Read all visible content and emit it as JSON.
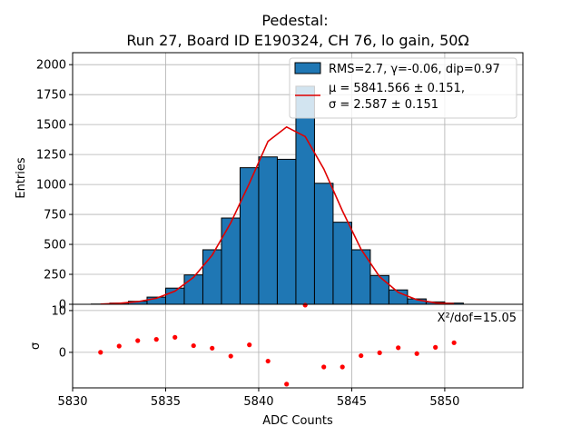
{
  "chart_data": [
    {
      "type": "bar",
      "title_lines": [
        "Pedestal:",
        "Run 27, Board ID E190324, CH 76, lo gain, 50Ω"
      ],
      "ylabel": "Entries",
      "xlim": [
        5830,
        5854.2
      ],
      "ylim": [
        0,
        2100
      ],
      "yticks": [
        0,
        250,
        500,
        750,
        1000,
        1250,
        1500,
        1750,
        2000
      ],
      "grid": true,
      "legend_position": "top-right",
      "histogram": {
        "name": "RMS=2.7, γ=-0.06, dip=0.97",
        "color": "#1f77b4",
        "bin_width": 1,
        "bin_starts": [
          5831,
          5832,
          5833,
          5834,
          5835,
          5836,
          5837,
          5838,
          5839,
          5840,
          5841,
          5842,
          5843,
          5844,
          5845,
          5846,
          5847,
          5848,
          5849,
          5850
        ],
        "counts": [
          2,
          10,
          25,
          60,
          135,
          245,
          455,
          720,
          1140,
          1230,
          1210,
          1820,
          1010,
          685,
          455,
          240,
          120,
          45,
          20,
          10
        ]
      },
      "fit": {
        "name_line1": "μ = 5841.566 ± 0.151,",
        "name_line2": "σ = 2.587 ± 0.151",
        "color": "#e00000",
        "x": [
          5831.5,
          5832.5,
          5833.5,
          5834.5,
          5835.5,
          5836.5,
          5837.5,
          5838.5,
          5839.5,
          5840.5,
          5841.5,
          5842.5,
          5843.5,
          5844.5,
          5845.5,
          5846.5,
          5847.5,
          5848.5,
          5849.5,
          5850.5
        ],
        "y": [
          2,
          8,
          22,
          50,
          110,
          225,
          410,
          680,
          1010,
          1360,
          1480,
          1400,
          1130,
          780,
          460,
          230,
          100,
          38,
          12,
          4
        ]
      }
    },
    {
      "type": "scatter",
      "xlabel": "ADC Counts",
      "ylabel": "σ",
      "xlim": [
        5830,
        5854.2
      ],
      "ylim": [
        -8.5,
        11.5
      ],
      "xticks": [
        5830,
        5835,
        5840,
        5845,
        5850
      ],
      "yticks": [
        0,
        10
      ],
      "grid": true,
      "annotation": "X²/dof=15.05",
      "color": "#ff0000",
      "x": [
        5831.5,
        5832.5,
        5833.5,
        5834.5,
        5835.5,
        5836.5,
        5837.5,
        5838.5,
        5839.5,
        5840.5,
        5841.5,
        5842.5,
        5843.5,
        5844.5,
        5845.5,
        5846.5,
        5847.5,
        5848.5,
        5849.5,
        5850.5
      ],
      "y": [
        0,
        1.5,
        2.8,
        3.1,
        3.6,
        1.6,
        1.0,
        -0.9,
        1.8,
        -2.1,
        -7.6,
        11.3,
        -3.5,
        -3.5,
        -0.8,
        -0.1,
        1.1,
        -0.3,
        1.2,
        2.3
      ]
    }
  ]
}
